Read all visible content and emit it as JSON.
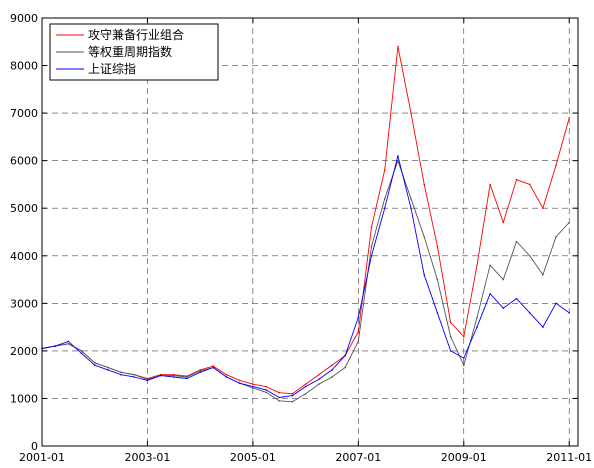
{
  "chart_data": {
    "type": "line",
    "title": "",
    "xlabel": "",
    "ylabel": "",
    "xlim": [
      "2001-01",
      "2011-03"
    ],
    "ylim": [
      0,
      9000
    ],
    "grid": true,
    "legend_position": "top-left",
    "x_ticks": [
      "2001-01",
      "2003-01",
      "2005-01",
      "2007-01",
      "2009-01",
      "2011-01"
    ],
    "y_ticks": [
      0,
      1000,
      2000,
      3000,
      4000,
      5000,
      6000,
      7000,
      8000,
      9000
    ],
    "dates": [
      "2001-01",
      "2001-04",
      "2001-07",
      "2001-10",
      "2002-01",
      "2002-04",
      "2002-07",
      "2002-10",
      "2003-01",
      "2003-04",
      "2003-07",
      "2003-10",
      "2004-01",
      "2004-04",
      "2004-07",
      "2004-10",
      "2005-01",
      "2005-04",
      "2005-07",
      "2005-10",
      "2006-01",
      "2006-04",
      "2006-07",
      "2006-10",
      "2007-01",
      "2007-04",
      "2007-07",
      "2007-10",
      "2008-01",
      "2008-04",
      "2008-07",
      "2008-10",
      "2009-01",
      "2009-04",
      "2009-07",
      "2009-10",
      "2010-01",
      "2010-04",
      "2010-07",
      "2010-10",
      "2011-01"
    ],
    "series": [
      {
        "name": "攻守兼备行业组合",
        "color": "#ff0000",
        "values": [
          2050,
          2100,
          2150,
          2000,
          1750,
          1650,
          1550,
          1500,
          1420,
          1500,
          1500,
          1470,
          1600,
          1680,
          1500,
          1380,
          1300,
          1250,
          1120,
          1100,
          1300,
          1500,
          1700,
          1900,
          2400,
          4600,
          5800,
          8400,
          7000,
          5500,
          4200,
          2600,
          2300,
          3800,
          5500,
          4700,
          5600,
          5500,
          5000,
          5900,
          6900
        ]
      },
      {
        "name": "等权重周期指数",
        "color": "#555555",
        "values": [
          2050,
          2100,
          2150,
          2000,
          1750,
          1650,
          1550,
          1500,
          1400,
          1480,
          1480,
          1450,
          1580,
          1650,
          1450,
          1320,
          1220,
          1130,
          950,
          930,
          1100,
          1300,
          1450,
          1650,
          2200,
          4200,
          5200,
          6000,
          5200,
          4400,
          3500,
          2300,
          1700,
          2700,
          3800,
          3500,
          4300,
          4000,
          3600,
          4400,
          4700
        ]
      },
      {
        "name": "上证综指",
        "color": "#0000ff",
        "values": [
          2050,
          2100,
          2200,
          1950,
          1700,
          1600,
          1500,
          1450,
          1380,
          1480,
          1450,
          1420,
          1550,
          1650,
          1450,
          1320,
          1250,
          1180,
          1020,
          1060,
          1250,
          1400,
          1600,
          1900,
          2700,
          4000,
          5000,
          6100,
          5000,
          3600,
          2800,
          2000,
          1850,
          2500,
          3200,
          2900,
          3100,
          2800,
          2500,
          3000,
          2800
        ]
      }
    ]
  }
}
